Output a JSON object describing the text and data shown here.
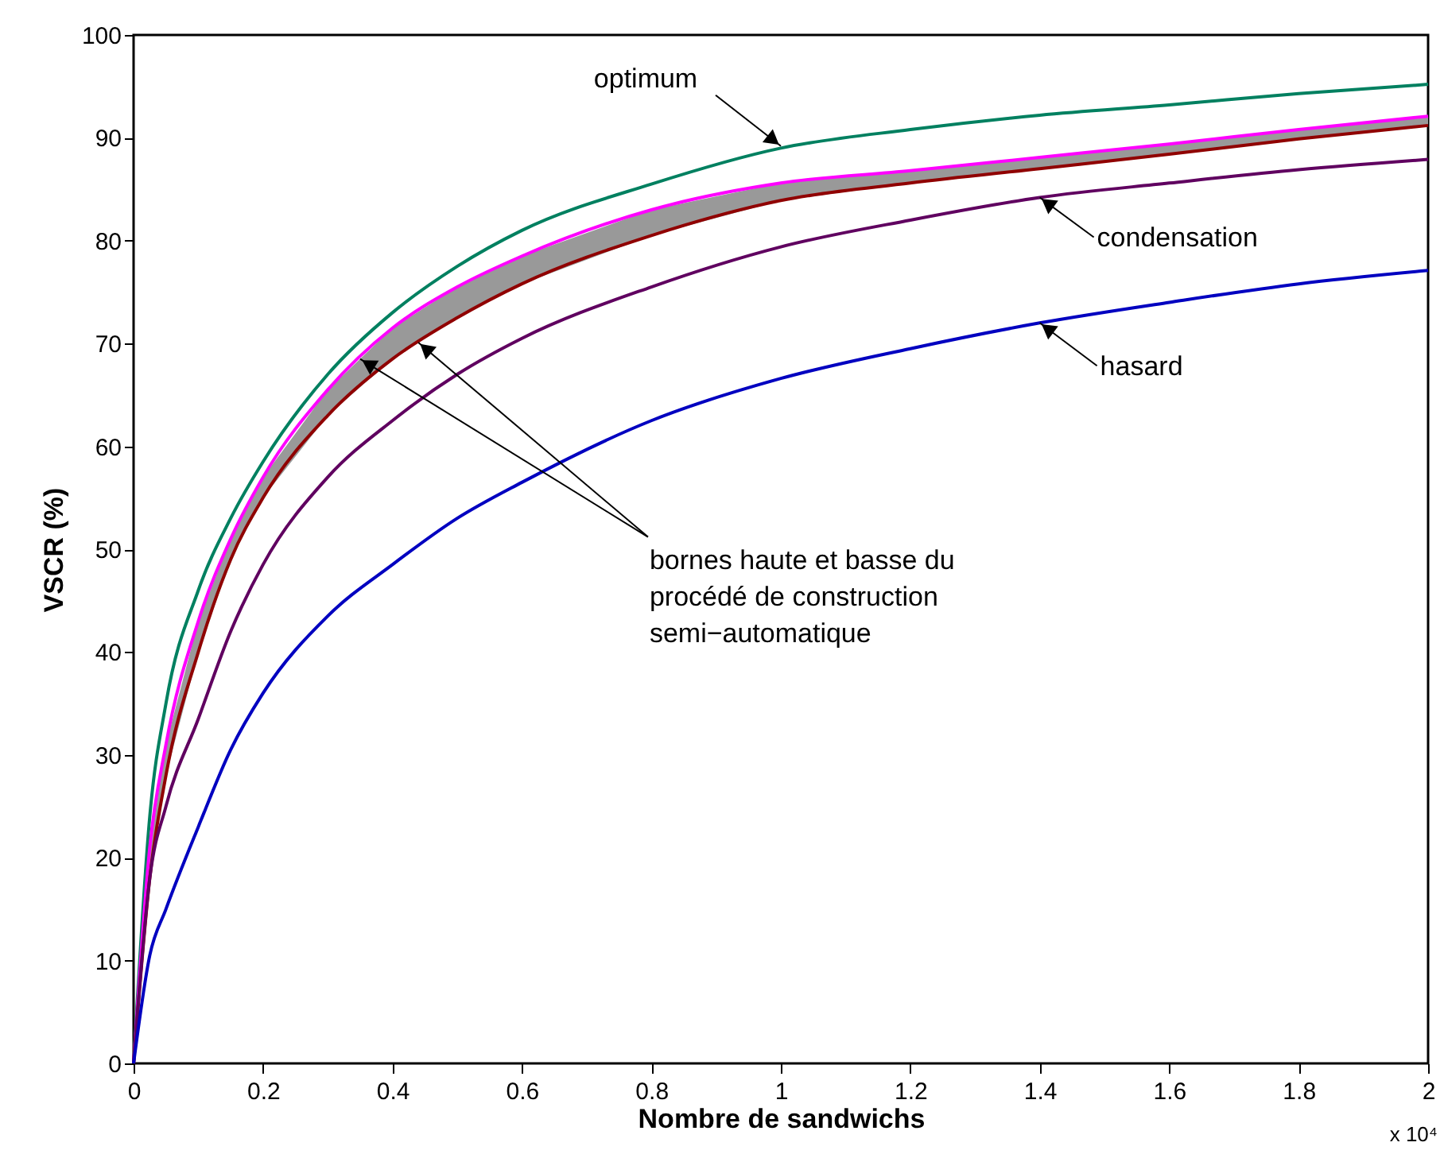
{
  "chart_data": {
    "type": "line",
    "xlabel": "Nombre de sandwichs",
    "ylabel": "VSCR (%)",
    "x": [
      0,
      0.025,
      0.05,
      0.1,
      0.15,
      0.2,
      0.3,
      0.4,
      0.5,
      0.6,
      0.8,
      1.0,
      1.2,
      1.4,
      1.6,
      1.8,
      2.0
    ],
    "xlim": [
      0,
      2
    ],
    "ylim": [
      0,
      100
    ],
    "xticks": [
      0,
      0.2,
      0.4,
      0.6,
      0.8,
      1,
      1.2,
      1.4,
      1.6,
      1.8,
      2
    ],
    "yticks": [
      0,
      10,
      20,
      30,
      40,
      50,
      60,
      70,
      80,
      90,
      100
    ],
    "grid": false,
    "marker": "none",
    "line_style": "solid",
    "series": [
      {
        "color": "#008060",
        "values": [
          0,
          24,
          35,
          46,
          53,
          58.5,
          67,
          73,
          77.5,
          81,
          85.5,
          89,
          90.8,
          92.2,
          93.2,
          94.3,
          95.2
        ]
      },
      {
        "color": "#ff00ff",
        "values": [
          0,
          21,
          31,
          43,
          51,
          57,
          65.5,
          71.5,
          75.5,
          78.5,
          83,
          85.6,
          86.8,
          88.1,
          89.4,
          90.8,
          92.1
        ]
      },
      {
        "color": "#900000",
        "values": [
          0,
          18,
          28,
          40,
          49,
          55,
          63,
          68.5,
          72.5,
          75.8,
          80.5,
          83.9,
          85.6,
          87,
          88.4,
          89.9,
          91.2
        ],
        "lower": [
          0,
          18,
          28,
          40,
          49,
          55,
          63,
          68.5,
          72.5,
          75.8,
          80.5,
          83.9,
          85.6,
          87,
          88.4,
          89.9,
          91.2
        ],
        "upper": [
          0,
          21,
          31,
          43,
          51,
          57,
          65.5,
          71.5,
          75.5,
          78.5,
          83,
          85.6,
          86.8,
          88.1,
          89.4,
          90.8,
          92.1
        ]
      },
      {
        "color": "#600060",
        "values": [
          0,
          18,
          25,
          33.5,
          42,
          48.5,
          57,
          62.5,
          67,
          70.5,
          75.5,
          79.4,
          82,
          84.2,
          85.6,
          86.9,
          87.9
        ]
      },
      {
        "color": "#0000c0",
        "values": [
          0,
          10.5,
          15,
          23,
          30.5,
          36,
          43.5,
          48.5,
          53,
          56.5,
          62.5,
          66.6,
          69.5,
          72,
          74,
          75.8,
          77.1
        ]
      }
    ],
    "annotations": [
      {
        "text": "optimum",
        "x": 1.0,
        "y": 89.2
      },
      {
        "text": "condensation",
        "x": 1.4,
        "y": 84.2
      },
      {
        "text": "hasard",
        "x": 1.4,
        "y": 72
      },
      {
        "text": "bornes haute et basse du\nprocédé de construction\nsemi−automatique",
        "x": 0.35,
        "y": 68.5
      },
      "x 10⁴"
    ]
  }
}
